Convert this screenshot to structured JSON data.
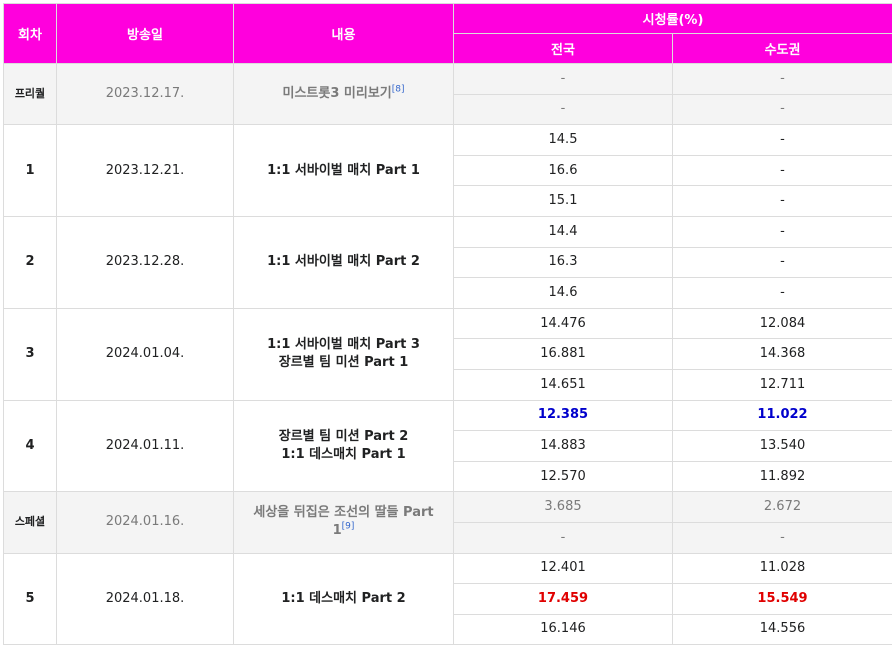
{
  "headers": {
    "episode": "회차",
    "airdate": "방송일",
    "content": "내용",
    "ratings": "시청률(%)",
    "nationwide": "전국",
    "metro": "수도권"
  },
  "rows": [
    {
      "episode": "프리퀄",
      "airdate": "2023.12.17.",
      "content_lines": [
        "미스트롯3 미리보기"
      ],
      "ref": "[8]",
      "ratings": [
        {
          "nationwide": "-",
          "metro": "-"
        },
        {
          "nationwide": "-",
          "metro": "-"
        }
      ]
    },
    {
      "episode": "1",
      "airdate": "2023.12.21.",
      "content_lines": [
        "1:1 서바이벌 매치 Part 1"
      ],
      "ratings": [
        {
          "nationwide": "14.5",
          "metro": "-"
        },
        {
          "nationwide": "16.6",
          "metro": "-"
        },
        {
          "nationwide": "15.1",
          "metro": "-"
        }
      ]
    },
    {
      "episode": "2",
      "airdate": "2023.12.28.",
      "content_lines": [
        "1:1 서바이벌 매치 Part 2"
      ],
      "ratings": [
        {
          "nationwide": "14.4",
          "metro": "-"
        },
        {
          "nationwide": "16.3",
          "metro": "-"
        },
        {
          "nationwide": "14.6",
          "metro": "-"
        }
      ]
    },
    {
      "episode": "3",
      "airdate": "2024.01.04.",
      "content_lines": [
        "1:1 서바이벌 매치 Part 3",
        "장르별 팀 미션 Part 1"
      ],
      "ratings": [
        {
          "nationwide": "14.476",
          "metro": "12.084"
        },
        {
          "nationwide": "16.881",
          "metro": "14.368"
        },
        {
          "nationwide": "14.651",
          "metro": "12.711"
        }
      ]
    },
    {
      "episode": "4",
      "airdate": "2024.01.11.",
      "content_lines": [
        "장르별 팀 미션 Part 2",
        "1:1 데스매치 Part 1"
      ],
      "ratings": [
        {
          "nationwide": "12.385",
          "metro": "11.022"
        },
        {
          "nationwide": "14.883",
          "metro": "13.540"
        },
        {
          "nationwide": "12.570",
          "metro": "11.892"
        }
      ]
    },
    {
      "episode": "스페셜",
      "airdate": "2024.01.16.",
      "content_lines": [
        "세상을 뒤집은 조선의 딸들 Part",
        "1"
      ],
      "ref": "[9]",
      "ratings": [
        {
          "nationwide": "3.685",
          "metro": "2.672"
        },
        {
          "nationwide": "-",
          "metro": "-"
        }
      ]
    },
    {
      "episode": "5",
      "airdate": "2024.01.18.",
      "content_lines": [
        "1:1 데스매치 Part 2"
      ],
      "ratings": [
        {
          "nationwide": "12.401",
          "metro": "11.028"
        },
        {
          "nationwide": "17.459",
          "metro": "15.549"
        },
        {
          "nationwide": "16.146",
          "metro": "14.556"
        }
      ]
    }
  ],
  "colors": {
    "header_bg": "#ff00dd",
    "lowest": "#0000cc",
    "highest": "#e00000",
    "special_row_bg": "#f4f4f4",
    "link": "#3366cc"
  }
}
